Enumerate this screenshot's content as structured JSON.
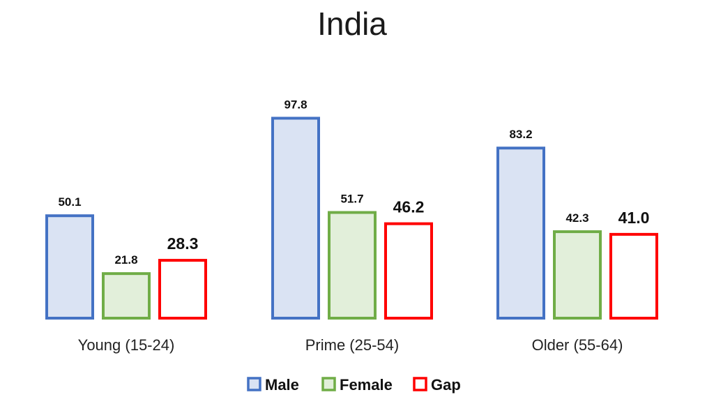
{
  "chart_data": {
    "type": "bar",
    "title": "India",
    "categories": [
      "Young (15-24)",
      "Prime (25-54)",
      "Older (55-64)"
    ],
    "series": [
      {
        "name": "Male",
        "values": [
          50.1,
          97.8,
          83.2
        ],
        "value_labels": [
          "50.1",
          "97.8",
          "83.2"
        ],
        "stroke": "#4472c4",
        "fill": "#dae3f3"
      },
      {
        "name": "Female",
        "values": [
          21.8,
          51.7,
          42.3
        ],
        "value_labels": [
          "21.8",
          "51.7",
          "42.3"
        ],
        "stroke": "#70ad47",
        "fill": "#e2efda"
      },
      {
        "name": "Gap",
        "values": [
          28.3,
          46.2,
          41.0
        ],
        "value_labels": [
          "28.3",
          "46.2",
          "41.0"
        ],
        "stroke": "#ff0000",
        "fill": "#ffffff"
      }
    ],
    "xlabel": "",
    "ylabel": "",
    "ylim": [
      0,
      100
    ],
    "grid": false,
    "legend_position": "bottom"
  }
}
